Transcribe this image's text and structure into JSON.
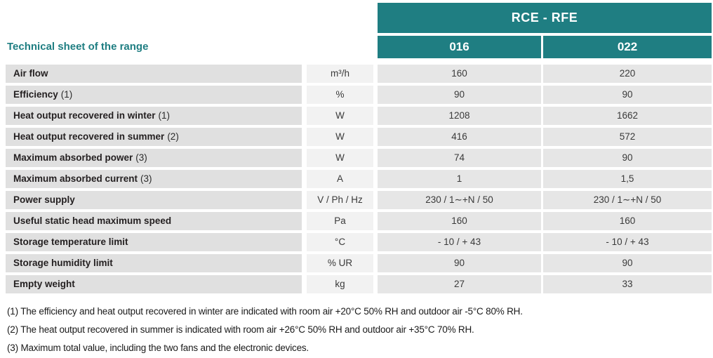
{
  "header": {
    "group_title": "RCE - RFE",
    "sheet_title": "Technical sheet of the range",
    "columns": {
      "c016": "016",
      "c022": "022"
    }
  },
  "colors": {
    "accent_teal": "#1f7e82",
    "label_cell_bg": "#e0e0e0",
    "unit_cell_bg": "#f2f2f2",
    "value_cell_bg": "#e6e6e6"
  },
  "table": {
    "rows": [
      {
        "label": "Air flow",
        "unit": "m³/h",
        "v016": "160",
        "v022": "220"
      },
      {
        "label": "Efficiency",
        "note": "(1)",
        "unit": "%",
        "v016": "90",
        "v022": "90"
      },
      {
        "label": "Heat output recovered in winter",
        "note": "(1)",
        "unit": "W",
        "v016": "1208",
        "v022": "1662"
      },
      {
        "label": "Heat output recovered in summer",
        "note": "(2)",
        "unit": "W",
        "v016": "416",
        "v022": "572"
      },
      {
        "label": "Maximum absorbed power",
        "note": "(3)",
        "unit": "W",
        "v016": "74",
        "v022": "90"
      },
      {
        "label": "Maximum absorbed current",
        "note": "(3)",
        "unit": "A",
        "v016": "1",
        "v022": "1,5"
      },
      {
        "label": "Power supply",
        "unit": "V / Ph / Hz",
        "v016": "230 / 1∼+N / 50",
        "v022": "230 / 1∼+N / 50"
      },
      {
        "label": "Useful static head maximum speed",
        "unit": "Pa",
        "v016": "160",
        "v022": "160"
      },
      {
        "label": "Storage temperature limit",
        "unit": "°C",
        "v016": "- 10 / + 43",
        "v022": "- 10 / + 43"
      },
      {
        "label": "Storage humidity limit",
        "unit": "% UR",
        "v016": "90",
        "v022": "90"
      },
      {
        "label": "Empty weight",
        "unit": "kg",
        "v016": "27",
        "v022": "33"
      }
    ]
  },
  "footnotes": [
    "(1) The efficiency and heat output recovered in winter are indicated with room air +20°C 50% RH and outdoor air -5°C 80% RH.",
    "(2) The heat output recovered in summer is indicated with room air +26°C 50% RH and outdoor air +35°C 70% RH.",
    "(3) Maximum total value, including the two fans and the electronic devices."
  ]
}
